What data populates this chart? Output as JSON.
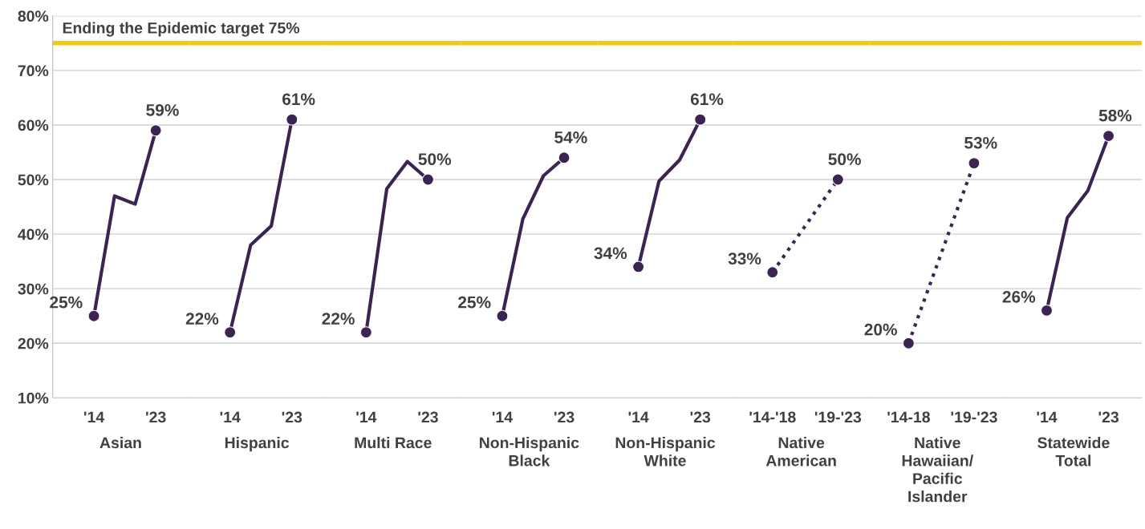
{
  "chart_data": [
    {
      "type": "line",
      "xlabel": "Asian",
      "categories": [
        "'14",
        null,
        null,
        "'23"
      ],
      "ylim": [
        10,
        80
      ],
      "yticks": [
        {
          "value": 10,
          "label": "10%"
        },
        {
          "value": 20,
          "label": "20%"
        },
        {
          "value": 30,
          "label": "30%"
        },
        {
          "value": 40,
          "label": "40%"
        },
        {
          "value": 50,
          "label": "50%"
        },
        {
          "value": 60,
          "label": "60%"
        },
        {
          "value": 70,
          "label": "70%"
        },
        {
          "value": 80,
          "label": "80%"
        }
      ],
      "grid": "y",
      "marker": "circle",
      "line_style": "solid",
      "series": [
        {
          "color": "#3b2452",
          "values": [
            25,
            47,
            45.5,
            59
          ],
          "value_labels": [
            "25%",
            null,
            null,
            "59%"
          ]
        }
      ],
      "ref_lines": [
        {
          "axis": "y",
          "value": 75,
          "label": "Ending the Epidemic target 75%",
          "color": "#f2c811"
        }
      ]
    },
    {
      "type": "line",
      "xlabel": "Hispanic",
      "categories": [
        "'14",
        null,
        null,
        "'23"
      ],
      "ylim": [
        10,
        80
      ],
      "yticks": [
        10,
        20,
        30,
        40,
        50,
        60,
        70,
        80
      ],
      "tick_labels": "x",
      "grid": "y",
      "marker": "circle",
      "line_style": "solid",
      "series": [
        {
          "color": "#3b2452",
          "values": [
            22,
            38,
            41.5,
            61
          ],
          "value_labels": [
            "22%",
            null,
            null,
            "61%"
          ]
        }
      ],
      "ref_lines": [
        {
          "axis": "y",
          "value": 75,
          "color": "#f2c811"
        }
      ]
    },
    {
      "type": "line",
      "xlabel": "Multi Race",
      "categories": [
        "'14",
        null,
        null,
        "'23"
      ],
      "ylim": [
        10,
        80
      ],
      "yticks": [
        10,
        20,
        30,
        40,
        50,
        60,
        70,
        80
      ],
      "tick_labels": "x",
      "grid": "y",
      "marker": "circle",
      "line_style": "solid",
      "series": [
        {
          "color": "#3b2452",
          "values": [
            22,
            48.3,
            53.3,
            50
          ],
          "value_labels": [
            "22%",
            null,
            null,
            "50%"
          ]
        }
      ],
      "ref_lines": [
        {
          "axis": "y",
          "value": 75,
          "color": "#f2c811"
        }
      ]
    },
    {
      "type": "line",
      "xlabel": "Non-Hispanic\nBlack",
      "categories": [
        "'14",
        null,
        null,
        "'23"
      ],
      "ylim": [
        10,
        80
      ],
      "yticks": [
        10,
        20,
        30,
        40,
        50,
        60,
        70,
        80
      ],
      "tick_labels": "x",
      "grid": "y",
      "marker": "circle",
      "line_style": "solid",
      "series": [
        {
          "color": "#3b2452",
          "values": [
            25,
            42.8,
            50.7,
            54
          ],
          "value_labels": [
            "25%",
            null,
            null,
            "54%"
          ]
        }
      ],
      "ref_lines": [
        {
          "axis": "y",
          "value": 75,
          "color": "#f2c811"
        }
      ]
    },
    {
      "type": "line",
      "xlabel": "Non-Hispanic\nWhite",
      "categories": [
        "'14",
        null,
        null,
        "'23"
      ],
      "ylim": [
        10,
        80
      ],
      "yticks": [
        10,
        20,
        30,
        40,
        50,
        60,
        70,
        80
      ],
      "tick_labels": "x",
      "grid": "y",
      "marker": "circle",
      "line_style": "solid",
      "series": [
        {
          "color": "#3b2452",
          "values": [
            34,
            49.7,
            53.6,
            61
          ],
          "value_labels": [
            "34%",
            null,
            null,
            "61%"
          ]
        }
      ],
      "ref_lines": [
        {
          "axis": "y",
          "value": 75,
          "color": "#f2c811"
        }
      ]
    },
    {
      "type": "line",
      "xlabel": "Native\nAmerican",
      "categories": [
        "'14-'18",
        "'19-'23"
      ],
      "ylim": [
        10,
        80
      ],
      "yticks": [
        10,
        20,
        30,
        40,
        50,
        60,
        70,
        80
      ],
      "tick_labels": "x",
      "grid": "y",
      "marker": "circle",
      "line_style": "dotted",
      "series": [
        {
          "color": "#3b2452",
          "values": [
            33,
            50
          ],
          "value_labels": [
            "33%",
            "50%"
          ]
        }
      ],
      "ref_lines": [
        {
          "axis": "y",
          "value": 75,
          "color": "#f2c811"
        }
      ]
    },
    {
      "type": "line",
      "xlabel": "Native\nHawaiian/\nPacific\nIslander",
      "categories": [
        "'14-18",
        "'19-'23"
      ],
      "ylim": [
        10,
        80
      ],
      "yticks": [
        10,
        20,
        30,
        40,
        50,
        60,
        70,
        80
      ],
      "tick_labels": "x",
      "grid": "y",
      "marker": "circle",
      "line_style": "dotted",
      "series": [
        {
          "color": "#3b2452",
          "values": [
            20,
            53
          ],
          "value_labels": [
            "20%",
            "53%"
          ]
        }
      ],
      "ref_lines": [
        {
          "axis": "y",
          "value": 75,
          "color": "#f2c811"
        }
      ]
    },
    {
      "type": "line",
      "xlabel": "Statewide\nTotal",
      "categories": [
        "'14",
        null,
        null,
        "'23"
      ],
      "ylim": [
        10,
        80
      ],
      "yticks": [
        10,
        20,
        30,
        40,
        50,
        60,
        70,
        80
      ],
      "tick_labels": "x",
      "grid": "y",
      "marker": "circle",
      "line_style": "solid",
      "series": [
        {
          "color": "#3b2452",
          "values": [
            26,
            43,
            48,
            58
          ],
          "value_labels": [
            "26%",
            null,
            null,
            "58%"
          ]
        }
      ],
      "ref_lines": [
        {
          "axis": "y",
          "value": 75,
          "color": "#f2c811"
        }
      ]
    }
  ]
}
